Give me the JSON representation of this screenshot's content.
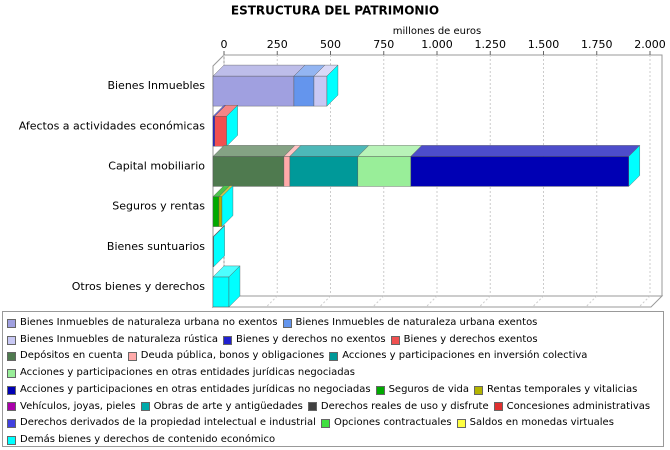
{
  "chart_data": {
    "type": "bar3d",
    "orientation": "horizontal",
    "stacked": true,
    "title": "ESTRUCTURA DEL PATRIMONIO",
    "x_label": "millones de euros",
    "categories": [
      "Bienes Inmuebles",
      "Afectos a actividades económicas",
      "Capital mobiliario",
      "Seguros y rentas",
      "Bienes suntuarios",
      "Otros bienes y derechos"
    ],
    "xlim": [
      0,
      2000
    ],
    "xticks": [
      0,
      250,
      500,
      750,
      {
        "value": 1000,
        "label": "1.000"
      },
      {
        "value": 1250,
        "label": "1.250"
      },
      {
        "value": 1500,
        "label": "1.500"
      },
      {
        "value": 1750,
        "label": "1.750"
      },
      {
        "value": 2000,
        "label": "2.000"
      }
    ],
    "grid": true,
    "side_color": "#00ffff",
    "series": [
      {
        "name": "Bienes Inmuebles de naturaleza urbana no exentos",
        "color": "#a0a0e0",
        "values": [
          380,
          0,
          0,
          0,
          0,
          0
        ]
      },
      {
        "name": "Bienes Inmuebles de naturaleza urbana exentos",
        "color": "#6495ed",
        "values": [
          94,
          0,
          0,
          0,
          0,
          0
        ]
      },
      {
        "name": "Bienes Inmuebles de naturaleza rústica",
        "color": "#c8c8f4",
        "values": [
          61,
          0,
          0,
          0,
          0,
          0
        ]
      },
      {
        "name": "Bienes y derechos no exentos",
        "color": "#2020d0",
        "values": [
          0,
          8,
          0,
          0,
          0,
          0
        ]
      },
      {
        "name": "Bienes y derechos exentos",
        "color": "#f05050",
        "values": [
          0,
          56,
          0,
          0,
          0,
          0
        ]
      },
      {
        "name": "Depósitos en cuenta",
        "color": "#4f7a4f",
        "values": [
          0,
          0,
          333,
          0,
          0,
          0
        ]
      },
      {
        "name": "Deuda pública, bonos y obligaciones",
        "color": "#ffaaaa",
        "values": [
          0,
          0,
          28,
          0,
          0,
          0
        ]
      },
      {
        "name": "Acciones y participaciones en inversión colectiva",
        "color": "#009999",
        "values": [
          0,
          0,
          319,
          0,
          0,
          0
        ]
      },
      {
        "name": "Acciones y participaciones en otras entidades jurídicas negociadas",
        "color": "#99ee99",
        "values": [
          0,
          0,
          249,
          0,
          0,
          0
        ]
      },
      {
        "name": "Acciones y participaciones en otras entidades jurídicas no negociadas",
        "color": "#0000b4",
        "values": [
          0,
          0,
          1023,
          0,
          0,
          0
        ]
      },
      {
        "name": "Seguros de vida",
        "color": "#00aa00",
        "values": [
          0,
          0,
          0,
          28,
          0,
          0
        ]
      },
      {
        "name": "Rentas temporales y vitalicias",
        "color": "#b4b400",
        "values": [
          0,
          0,
          0,
          14,
          0,
          0
        ]
      },
      {
        "name": "Vehículos, joyas, pieles",
        "color": "#aa00aa",
        "values": [
          0,
          0,
          0,
          0,
          1,
          0
        ]
      },
      {
        "name": "Obras de arte y antigüedades",
        "color": "#00aaaa",
        "values": [
          0,
          0,
          0,
          0,
          2,
          0
        ]
      },
      {
        "name": "Derechos reales de uso y disfrute",
        "color": "#404040",
        "values": [
          0,
          0,
          0,
          0,
          0,
          0
        ]
      },
      {
        "name": "Concesiones administrativas",
        "color": "#e03030",
        "values": [
          0,
          0,
          0,
          0,
          0,
          0
        ]
      },
      {
        "name": "Derechos derivados de la propiedad intelectual e industrial",
        "color": "#4040e0",
        "values": [
          0,
          0,
          0,
          0,
          0,
          0
        ]
      },
      {
        "name": "Opciones contractuales",
        "color": "#40e040",
        "values": [
          0,
          0,
          0,
          0,
          0,
          0
        ]
      },
      {
        "name": "Saldos en monedas virtuales",
        "color": "#ffff40",
        "values": [
          0,
          0,
          0,
          0,
          0,
          0
        ]
      },
      {
        "name": "Demás bienes y derechos de contenido económico",
        "color": "#00ffff",
        "values": [
          0,
          0,
          0,
          0,
          0,
          75
        ]
      }
    ]
  }
}
